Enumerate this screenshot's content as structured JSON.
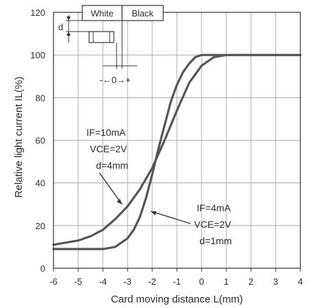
{
  "chart_data": {
    "type": "line",
    "title": "",
    "xlabel": "Card moving distance L(mm)",
    "ylabel": "Relative light current IL(%)",
    "xlim": [
      -6,
      4
    ],
    "ylim": [
      0,
      120
    ],
    "x_ticks": [
      "-6",
      "-5",
      "-4",
      "-3",
      "-2",
      "-1",
      "0",
      "1",
      "2",
      "3",
      "4"
    ],
    "y_ticks": [
      "0",
      "20",
      "40",
      "60",
      "80",
      "100",
      "120"
    ],
    "grid": true,
    "series": [
      {
        "x": [
          -6,
          -5.5,
          -5,
          -4.5,
          -4,
          -3.5,
          -3,
          -2.5,
          -2,
          -1.5,
          -1,
          -0.5,
          0,
          0.5,
          1,
          1.5,
          2,
          2.5,
          3,
          3.5,
          4
        ],
        "y": [
          11,
          12,
          13,
          15,
          18,
          23,
          29,
          37,
          47,
          60,
          74,
          87,
          95,
          99,
          100,
          100,
          100,
          100,
          100,
          100,
          100
        ],
        "condition": [
          "IF=10mA",
          "VCE=2V",
          "d=4mm"
        ]
      },
      {
        "x": [
          -6,
          -5,
          -4,
          -3.5,
          -3,
          -2.75,
          -2.5,
          -2.25,
          -2,
          -1.75,
          -1.5,
          -1.25,
          -1,
          -0.75,
          -0.5,
          -0.25,
          0,
          0.5,
          1,
          2,
          3,
          4
        ],
        "y": [
          9,
          9,
          9,
          10,
          14,
          18,
          24,
          33,
          44,
          56,
          67,
          78,
          86,
          92,
          96,
          99,
          100,
          100,
          100,
          100,
          100,
          100
        ],
        "condition": [
          "IF=4mA",
          "VCE=2V",
          "d=1mm"
        ]
      }
    ],
    "inset": {
      "white_label": "White",
      "black_label": "Black",
      "d_label": "d",
      "scale_label": "-←0→+"
    }
  },
  "colors": {
    "curve": "#555555",
    "grid": "#9a9a9a",
    "axis": "#333333",
    "text": "#2b2b2b"
  }
}
